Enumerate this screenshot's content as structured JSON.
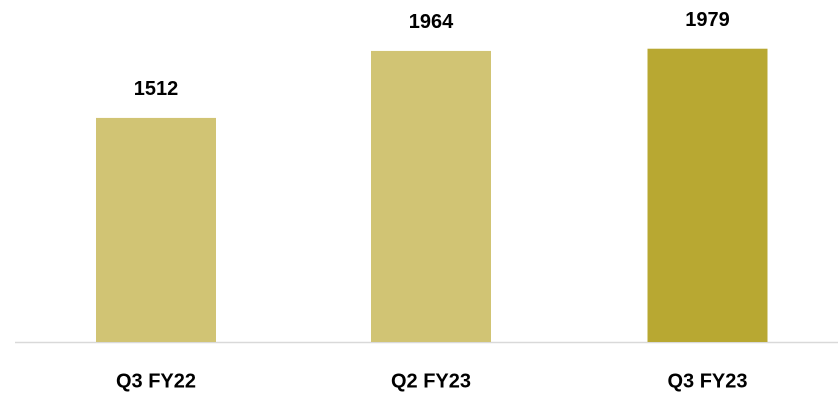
{
  "chart_data": {
    "type": "bar",
    "categories": [
      "Q3 FY22",
      "Q2 FY23",
      "Q3 FY23"
    ],
    "values": [
      1512,
      1964,
      1979
    ],
    "colors": [
      "#d1c474",
      "#d1c474",
      "#b8a832"
    ]
  }
}
